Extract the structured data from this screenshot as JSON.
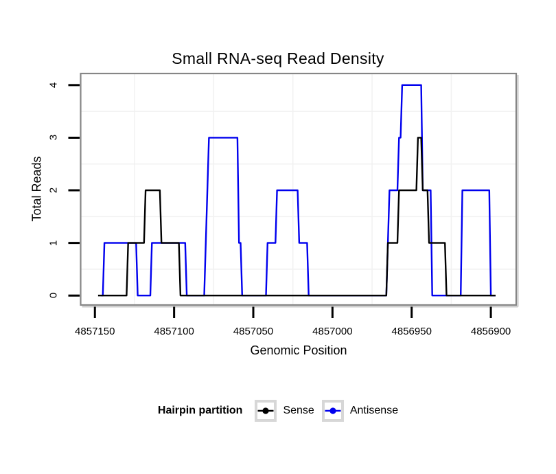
{
  "chart_data": {
    "type": "line",
    "title": "Small RNA-seq Read Density",
    "xlabel": "Genomic Position",
    "ylabel": "Total Reads",
    "x_reversed": true,
    "xlim": [
      4857159,
      4856884
    ],
    "ylim": [
      -0.18,
      4.22
    ],
    "grid": "minor-only",
    "x_ticks": [
      {
        "value": 4857150,
        "label": "4857150"
      },
      {
        "value": 4857100,
        "label": "4857100"
      },
      {
        "value": 4857050,
        "label": "4857050"
      },
      {
        "value": 4857000,
        "label": "4857000"
      },
      {
        "value": 4856950,
        "label": "4856950"
      },
      {
        "value": 4856900,
        "label": "4856900"
      }
    ],
    "y_ticks": [
      {
        "value": 0,
        "label": "0"
      },
      {
        "value": 1,
        "label": "1"
      },
      {
        "value": 2,
        "label": "2"
      },
      {
        "value": 3,
        "label": "3"
      },
      {
        "value": 4,
        "label": "4"
      }
    ],
    "x_minor": [
      4857125,
      4857075,
      4857025,
      4856975,
      4856925
    ],
    "y_minor": [
      0.5,
      1.5,
      2.5,
      3.5
    ],
    "legend": {
      "title": "Hairpin partition",
      "position": "bottom"
    },
    "series": [
      {
        "name": "Sense",
        "color": "#000000",
        "points": [
          [
            4857148,
            0
          ],
          [
            4857130,
            0
          ],
          [
            4857129,
            1
          ],
          [
            4857119,
            1
          ],
          [
            4857118,
            2
          ],
          [
            4857109,
            2
          ],
          [
            4857108,
            1
          ],
          [
            4857097,
            1
          ],
          [
            4857096,
            0
          ],
          [
            4856966,
            0
          ],
          [
            4856965,
            1
          ],
          [
            4856959,
            1
          ],
          [
            4856958,
            2
          ],
          [
            4856947,
            2
          ],
          [
            4856946,
            3
          ],
          [
            4856944,
            3
          ],
          [
            4856943,
            2
          ],
          [
            4856940,
            2
          ],
          [
            4856939,
            1
          ],
          [
            4856929,
            1
          ],
          [
            4856928,
            0
          ],
          [
            4856897,
            0
          ]
        ]
      },
      {
        "name": "Antisense",
        "color": "#0000EE",
        "points": [
          [
            4857146,
            0
          ],
          [
            4857145,
            0
          ],
          [
            4857144,
            1
          ],
          [
            4857124,
            1
          ],
          [
            4857123,
            0
          ],
          [
            4857115,
            0
          ],
          [
            4857114,
            1
          ],
          [
            4857093,
            1
          ],
          [
            4857092,
            0
          ],
          [
            4857081,
            0
          ],
          [
            4857080,
            1
          ],
          [
            4857079,
            2
          ],
          [
            4857078,
            3
          ],
          [
            4857060,
            3
          ],
          [
            4857059,
            1
          ],
          [
            4857058,
            1
          ],
          [
            4857057,
            0
          ],
          [
            4857042,
            0
          ],
          [
            4857041,
            1
          ],
          [
            4857036,
            1
          ],
          [
            4857035,
            2
          ],
          [
            4857022,
            2
          ],
          [
            4857021,
            1
          ],
          [
            4857016,
            1
          ],
          [
            4857015,
            0
          ],
          [
            4856966,
            0
          ],
          [
            4856965,
            1
          ],
          [
            4856964,
            2
          ],
          [
            4856959,
            2
          ],
          [
            4856958,
            3
          ],
          [
            4856957,
            3
          ],
          [
            4856956,
            4
          ],
          [
            4856944,
            4
          ],
          [
            4856943,
            2
          ],
          [
            4856938,
            2
          ],
          [
            4856937,
            0
          ],
          [
            4856919,
            0
          ],
          [
            4856918,
            2
          ],
          [
            4856901,
            2
          ],
          [
            4856900,
            0
          ],
          [
            4856897,
            0
          ]
        ]
      }
    ]
  },
  "colors": {
    "background": "#ffffff",
    "panel_border": "#868686",
    "panel_shadow": "#c9c9c9",
    "grid_minor": "#f1f1f1",
    "tick": "#000000",
    "legend_key_border": "#d7d7d7",
    "legend_key_fill": "#ffffff"
  }
}
